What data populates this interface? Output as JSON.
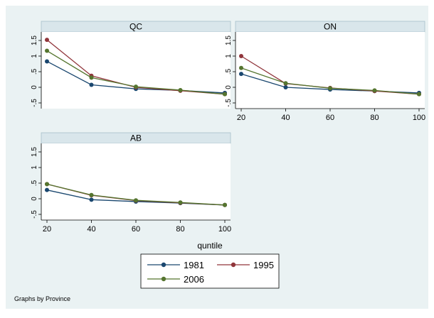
{
  "chart_data": {
    "type": "line",
    "layout": "small-multiples",
    "facet_by": "Province",
    "note": "Graphs by Province",
    "xlabel": "quntile",
    "ylabel": "",
    "x": [
      20,
      40,
      60,
      80,
      100
    ],
    "xticks": [
      "20",
      "40",
      "60",
      "80",
      "100"
    ],
    "xlim": [
      20,
      100
    ],
    "ylim": [
      -0.5,
      1.5
    ],
    "yticks": [
      "-.5",
      "0",
      ".5",
      "1",
      "1.5"
    ],
    "grid": false,
    "legend_position": "bottom",
    "colors": {
      "1981": "#1a476f",
      "1995": "#90353b",
      "2006": "#55752f",
      "panel_bg": "#eaf2f3",
      "header_bg": "#d9e6eb"
    },
    "legend": [
      "1981",
      "1995",
      "2006"
    ],
    "panels": [
      {
        "title": "QC",
        "series": [
          {
            "name": "1981",
            "values": [
              0.83,
              0.08,
              -0.05,
              -0.1,
              -0.18
            ]
          },
          {
            "name": "1995",
            "values": [
              1.52,
              0.37,
              0.0,
              -0.11,
              -0.22
            ]
          },
          {
            "name": "2006",
            "values": [
              1.17,
              0.31,
              0.02,
              -0.09,
              -0.22
            ]
          }
        ]
      },
      {
        "title": "ON",
        "series": [
          {
            "name": "1981",
            "values": [
              0.43,
              0.0,
              -0.07,
              -0.12,
              -0.18
            ]
          },
          {
            "name": "1995",
            "values": [
              1.0,
              0.12,
              -0.02,
              -0.12,
              -0.22
            ]
          },
          {
            "name": "2006",
            "values": [
              0.62,
              0.13,
              -0.03,
              -0.1,
              -0.22
            ]
          }
        ]
      },
      {
        "title": "AB",
        "series": [
          {
            "name": "1981",
            "values": [
              0.28,
              -0.03,
              -0.09,
              -0.14,
              -0.2
            ]
          },
          {
            "name": "1995",
            "values": [
              0.47,
              0.11,
              -0.06,
              -0.13,
              -0.2
            ]
          },
          {
            "name": "2006",
            "values": [
              0.47,
              0.12,
              -0.05,
              -0.12,
              -0.2
            ]
          }
        ]
      }
    ]
  }
}
